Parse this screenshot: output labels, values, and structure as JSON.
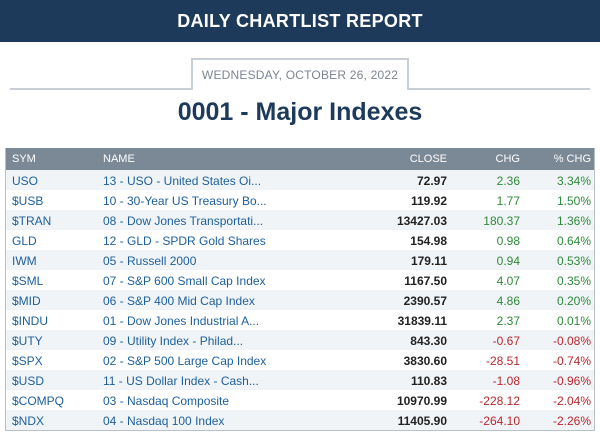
{
  "header": {
    "title": "DAILY CHARTLIST REPORT"
  },
  "report": {
    "date": "WEDNESDAY, OCTOBER 26, 2022"
  },
  "chartlist": {
    "title": "0001 - Major Indexes"
  },
  "table": {
    "columns": {
      "sym": "SYM",
      "name": "NAME",
      "close": "CLOSE",
      "chg": "CHG",
      "pct": "% CHG"
    },
    "rows": [
      {
        "sym": "USO",
        "name": "13 - USO - United States Oi...",
        "close": "72.97",
        "chg": "2.36",
        "pct": "3.34%",
        "dir": "pos"
      },
      {
        "sym": "$USB",
        "name": "10 - 30-Year US Treasury Bo...",
        "close": "119.92",
        "chg": "1.77",
        "pct": "1.50%",
        "dir": "pos"
      },
      {
        "sym": "$TRAN",
        "name": "08 - Dow Jones Transportati...",
        "close": "13427.03",
        "chg": "180.37",
        "pct": "1.36%",
        "dir": "pos"
      },
      {
        "sym": "GLD",
        "name": "12 - GLD - SPDR Gold Shares",
        "close": "154.98",
        "chg": "0.98",
        "pct": "0.64%",
        "dir": "pos"
      },
      {
        "sym": "IWM",
        "name": "05 - Russell 2000",
        "close": "179.11",
        "chg": "0.94",
        "pct": "0.53%",
        "dir": "pos"
      },
      {
        "sym": "$SML",
        "name": "07 - S&P 600 Small Cap Index",
        "close": "1167.50",
        "chg": "4.07",
        "pct": "0.35%",
        "dir": "pos"
      },
      {
        "sym": "$MID",
        "name": "06 - S&P 400 Mid Cap Index",
        "close": "2390.57",
        "chg": "4.86",
        "pct": "0.20%",
        "dir": "pos"
      },
      {
        "sym": "$INDU",
        "name": "01 - Dow Jones Industrial A...",
        "close": "31839.11",
        "chg": "2.37",
        "pct": "0.01%",
        "dir": "pos"
      },
      {
        "sym": "$UTY",
        "name": "09 - Utility Index - Philad...",
        "close": "843.30",
        "chg": "-0.67",
        "pct": "-0.08%",
        "dir": "neg"
      },
      {
        "sym": "$SPX",
        "name": "02 - S&P 500 Large Cap Index",
        "close": "3830.60",
        "chg": "-28.51",
        "pct": "-0.74%",
        "dir": "neg"
      },
      {
        "sym": "$USD",
        "name": "11 - US Dollar Index - Cash...",
        "close": "110.83",
        "chg": "-1.08",
        "pct": "-0.96%",
        "dir": "neg"
      },
      {
        "sym": "$COMPQ",
        "name": "03 - Nasdaq Composite",
        "close": "10970.99",
        "chg": "-228.12",
        "pct": "-2.04%",
        "dir": "neg"
      },
      {
        "sym": "$NDX",
        "name": "04 - Nasdaq 100 Index",
        "close": "11405.90",
        "chg": "-264.10",
        "pct": "-2.26%",
        "dir": "neg"
      }
    ]
  },
  "colors": {
    "header_bg": "#1e3a5a",
    "table_header_bg": "#7b8896",
    "link": "#1d5f9b",
    "positive": "#2f8a3a",
    "negative": "#b9282d"
  }
}
